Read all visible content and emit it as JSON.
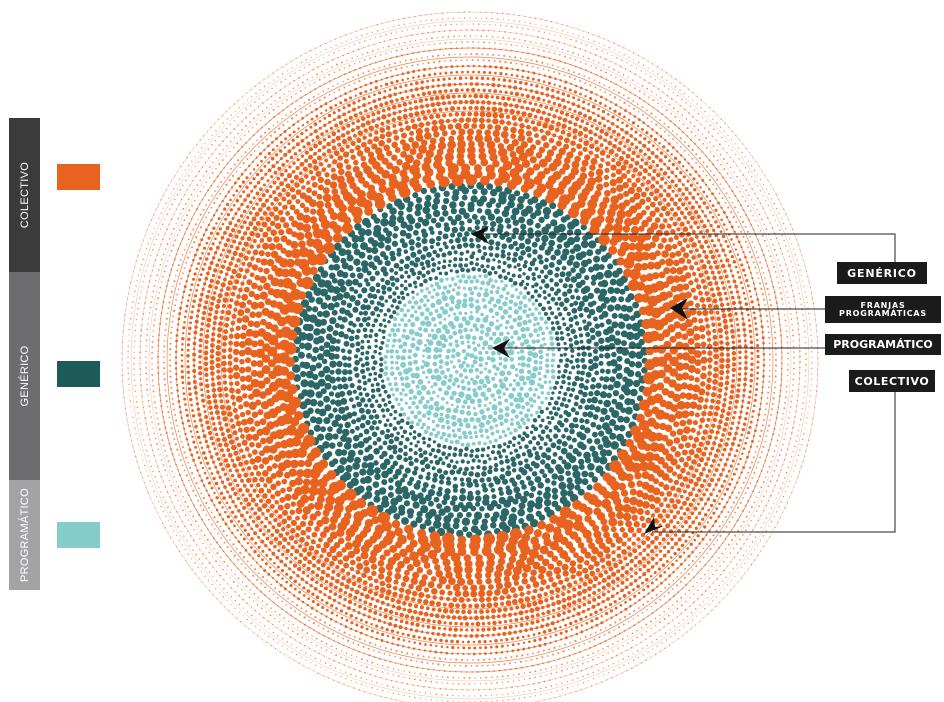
{
  "legend": {
    "bar": [
      {
        "label": "COLECTIVO",
        "color": "#3b3b3b"
      },
      {
        "label": "GENÉRICO",
        "color": "#6d6d6f"
      },
      {
        "label": "PROGRAMÁTICO",
        "color": "#a3a3a5"
      }
    ],
    "swatches": [
      {
        "category": "colectivo",
        "color": "#e8631f"
      },
      {
        "category": "generico",
        "color": "#1f5a5b"
      },
      {
        "category": "programatico",
        "color": "#86cccb"
      }
    ]
  },
  "callouts": {
    "generico": "GENÉRICO",
    "franjas_line1": "FRANJAS",
    "franjas_line2": "PROGRAMÁTICAS",
    "programatico": "PROGRAMÁTICO",
    "colectivo": "COLECTIVO"
  },
  "colors": {
    "orange": "#e8631f",
    "dark_teal": "#2a6766",
    "light_teal": "#86cccb",
    "label_bg": "#1b1b1b",
    "leader": "#222222"
  }
}
